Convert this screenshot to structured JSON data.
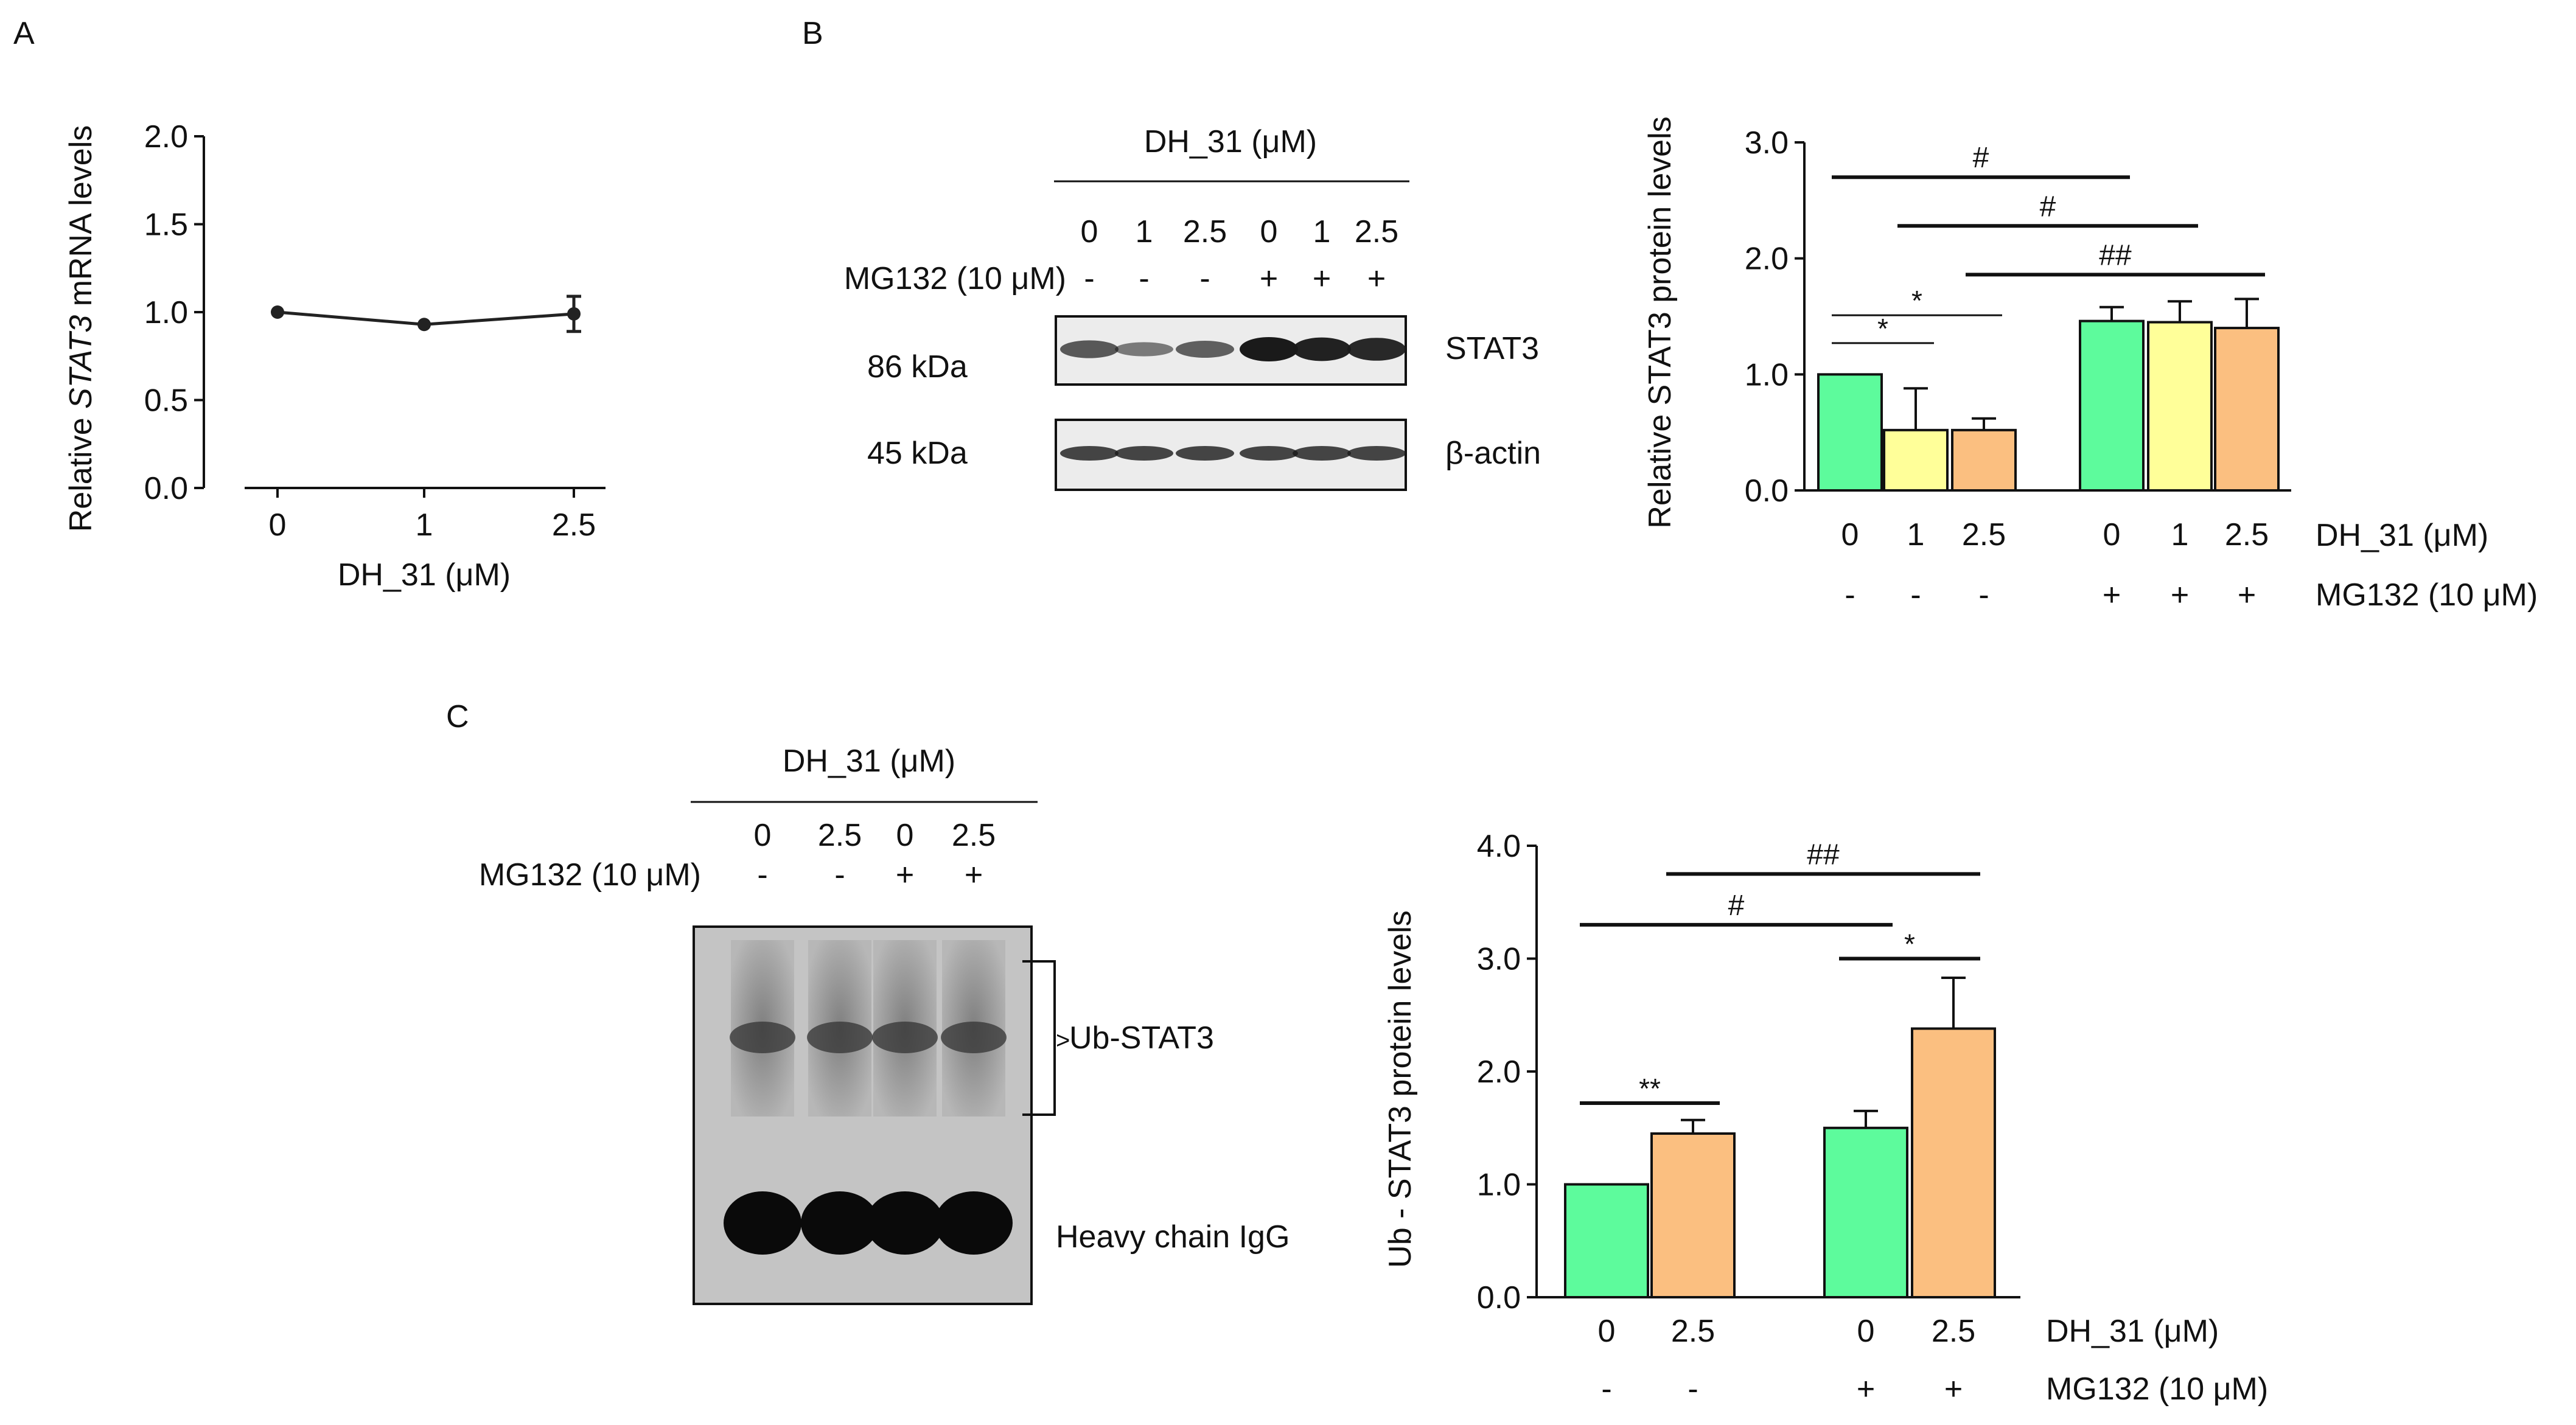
{
  "colors": {
    "green": "#5dfb9c",
    "yellow": "#ffff99",
    "orange": "#fbbf80",
    "ink": "#111111"
  },
  "panels": {
    "a": "A",
    "b": "B",
    "c": "C"
  },
  "blots": {
    "b": {
      "header": "DH_31 (μM)",
      "doses": [
        "0",
        "1",
        "2.5",
        "0",
        "1",
        "2.5"
      ],
      "mg_label": "MG132 (10 μM)",
      "mg_signs": [
        "-",
        "-",
        "-",
        "+",
        "+",
        "+"
      ],
      "stat3_mw": "86 kDa",
      "stat3_label": "STAT3",
      "actin_mw": "45 kDa",
      "actin_label": "β-actin",
      "stat3_bands": [
        0.55,
        0.3,
        0.5,
        1.0,
        0.95,
        0.9
      ],
      "actin_bands": [
        0.8,
        0.8,
        0.8,
        0.8,
        0.8,
        0.8
      ]
    },
    "c": {
      "header": "DH_31 (μM)",
      "doses": [
        "0",
        "2.5",
        "0",
        "2.5"
      ],
      "mg_label": "MG132 (10 μM)",
      "mg_signs": [
        "-",
        "-",
        "+",
        "+"
      ],
      "ub_label": "Ub-STAT3",
      "ub_marker": ">",
      "igg_label": "Heavy chain IgG"
    }
  },
  "chart_data": [
    {
      "type": "line",
      "panel": "A",
      "title": "",
      "x_categories": [
        "0",
        "1",
        "2.5"
      ],
      "values": [
        1.0,
        0.93,
        0.99
      ],
      "errors": [
        0.01,
        0.01,
        0.1
      ],
      "xlabel": "DH_31 (μM)",
      "ylabel_parts": [
        "Relative ",
        "STAT3",
        " mRNA levels"
      ],
      "ylim": [
        0,
        2.0
      ],
      "yticks": [
        "0.0",
        "0.5",
        "1.0",
        "1.5",
        "2.0"
      ]
    },
    {
      "type": "bar",
      "panel": "B",
      "title": "",
      "categories": [
        "0",
        "1",
        "2.5",
        "0",
        "1",
        "2.5"
      ],
      "mg132": [
        "-",
        "-",
        "-",
        "+",
        "+",
        "+"
      ],
      "values": [
        1.0,
        0.52,
        0.52,
        1.46,
        1.45,
        1.4
      ],
      "errors": [
        0.0,
        0.36,
        0.1,
        0.12,
        0.18,
        0.25
      ],
      "bar_colors": [
        "green",
        "yellow",
        "orange",
        "green",
        "yellow",
        "orange"
      ],
      "ylabel": "Relative STAT3 protein levels",
      "row_labels": [
        "DH_31 (μM)",
        "MG132 (10 μM)"
      ],
      "ylim": [
        0,
        3.0
      ],
      "yticks": [
        "0.0",
        "1.0",
        "2.0",
        "3.0"
      ],
      "annotations": [
        {
          "from": 0,
          "to": 1,
          "level": 1.27,
          "text": "*"
        },
        {
          "from": 0,
          "to": 2,
          "level": 1.51,
          "text": "*"
        },
        {
          "from": 0,
          "to": 3,
          "level": 2.7,
          "text": "#"
        },
        {
          "from": 1,
          "to": 4,
          "level": 2.28,
          "text": "#"
        },
        {
          "from": 2,
          "to": 5,
          "level": 1.86,
          "text": "##"
        }
      ]
    },
    {
      "type": "bar",
      "panel": "C",
      "title": "",
      "categories": [
        "0",
        "2.5",
        "0",
        "2.5"
      ],
      "mg132": [
        "-",
        "-",
        "+",
        "+"
      ],
      "values": [
        1.0,
        1.45,
        1.5,
        2.38
      ],
      "errors": [
        0.0,
        0.12,
        0.15,
        0.45
      ],
      "bar_colors": [
        "green",
        "orange",
        "green",
        "orange"
      ],
      "ylabel": "Ub - STAT3 protein levels",
      "row_labels": [
        "DH_31 (μM)",
        "MG132 (10 μM)"
      ],
      "ylim": [
        0,
        4.0
      ],
      "yticks": [
        "0.0",
        "1.0",
        "2.0",
        "3.0",
        "4.0"
      ],
      "annotations": [
        {
          "from": 0,
          "to": 1,
          "level": 1.72,
          "text": "**"
        },
        {
          "from": 2,
          "to": 3,
          "level": 3.0,
          "text": "*"
        },
        {
          "from": 0,
          "to": 2,
          "level": 3.3,
          "text": "#"
        },
        {
          "from": 1,
          "to": 3,
          "level": 3.75,
          "text": "##"
        }
      ]
    }
  ]
}
